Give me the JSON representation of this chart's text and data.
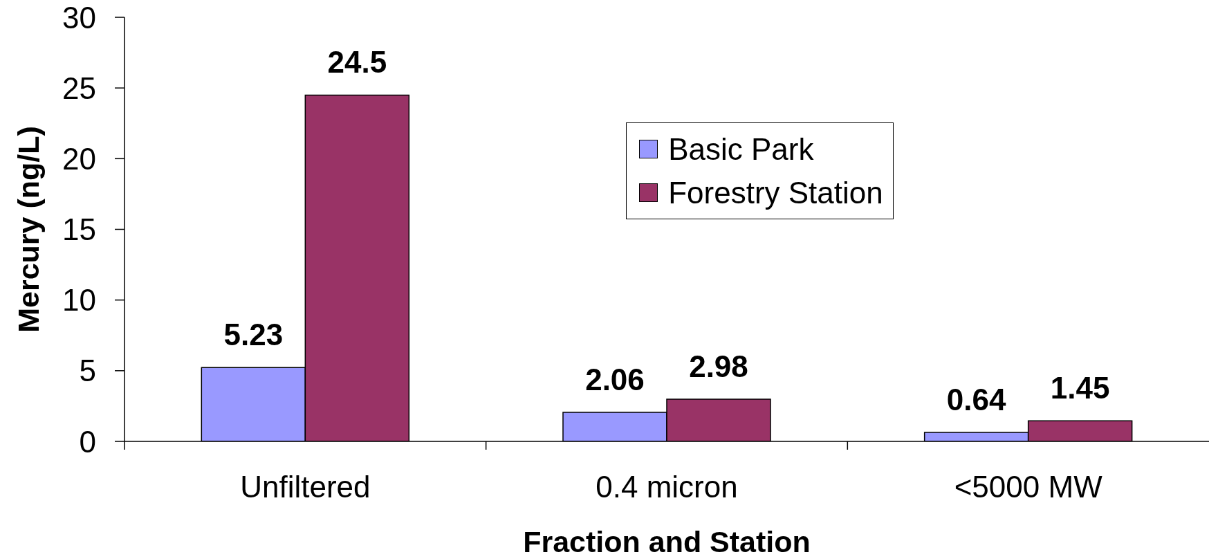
{
  "chart_data": {
    "type": "bar",
    "xlabel": "Fraction and Station",
    "ylabel": "Mercury (ng/L)",
    "categories": [
      "Unfiltered",
      "0.4 micron",
      "<5000 MW"
    ],
    "series": [
      {
        "name": "Basic Park",
        "color": "#9999ff",
        "values": [
          5.23,
          2.06,
          0.64
        ]
      },
      {
        "name": "Forestry Station",
        "color": "#993366",
        "values": [
          24.5,
          2.98,
          1.45
        ]
      }
    ],
    "ylim": [
      0,
      30
    ],
    "yticks": [
      0,
      5,
      10,
      15,
      20,
      25,
      30
    ],
    "data_labels": true,
    "legend": "top"
  }
}
